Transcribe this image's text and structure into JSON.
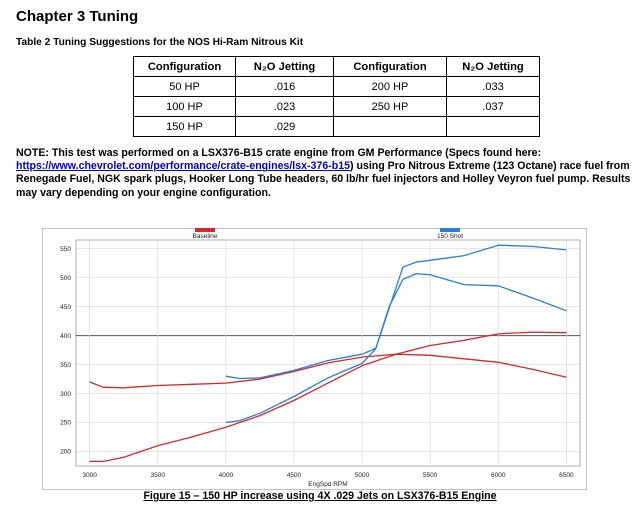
{
  "heading": "Chapter 3 Tuning",
  "table_caption": "Table 2 Tuning Suggestions for the NOS Hi-Ram Nitrous Kit",
  "table": {
    "headers": [
      "Configuration",
      "N₂O Jetting",
      "Configuration",
      "N₂O Jetting"
    ],
    "rows": [
      [
        "50 HP",
        ".016",
        "200 HP",
        ".033"
      ],
      [
        "100 HP",
        ".023",
        "250 HP",
        ".037"
      ],
      [
        "150 HP",
        ".029",
        "",
        ""
      ]
    ]
  },
  "note": {
    "before": "NOTE: This test was performed on a LSX376-B15 crate engine from GM Performance (Specs found here: ",
    "link": "https://www.chevrolet.com/performance/crate-engines/lsx-376-b15",
    "after": ") using Pro Nitrous Extreme (123 Octane) race fuel from Renegade Fuel, NGK spark plugs, Hooker Long Tube headers, 60 lb/hr fuel injectors and Holley Veyron fuel pump.  Results may vary depending on your engine configuration."
  },
  "figure_caption": "Figure 15 – 150 HP increase using 4X .029 Jets on LSX376-B15 Engine",
  "chart_data": {
    "type": "line",
    "xlabel": "EngSpd RPM",
    "ylabel": "",
    "xlim": [
      2900,
      6600
    ],
    "ylim": [
      175,
      565
    ],
    "x_ticks": [
      3000,
      3500,
      4000,
      4500,
      5000,
      5500,
      6000,
      6500
    ],
    "y_ticks": [
      200,
      250,
      300,
      350,
      400,
      450,
      500,
      550
    ],
    "grid": true,
    "legend_placement": "top",
    "series": [
      {
        "name": "Baseline",
        "color": "#d62828",
        "part": "torque",
        "x": [
          3000,
          3100,
          3250,
          3500,
          3750,
          4000,
          4250,
          4500,
          4750,
          5000,
          5250,
          5500,
          5750,
          6000,
          6250,
          6500
        ],
        "y": [
          320,
          311,
          310,
          314,
          316,
          318,
          325,
          338,
          353,
          363,
          368,
          366,
          360,
          354,
          342,
          328
        ]
      },
      {
        "name": "Baseline",
        "color": "#d62828",
        "part": "hp",
        "x": [
          3000,
          3100,
          3250,
          3500,
          3750,
          4000,
          4250,
          4500,
          4750,
          5000,
          5250,
          5500,
          5750,
          6000,
          6250,
          6500
        ],
        "y": [
          183,
          183,
          190,
          210,
          225,
          242,
          262,
          288,
          318,
          348,
          368,
          383,
          392,
          403,
          406,
          405
        ]
      },
      {
        "name": "150 Shot",
        "color": "#2a7fd4",
        "part": "torque",
        "x": [
          4000,
          4100,
          4250,
          4500,
          4750,
          5000,
          5100,
          5200,
          5300,
          5400,
          5500,
          5750,
          6000,
          6250,
          6500
        ],
        "y": [
          330,
          326,
          327,
          340,
          357,
          368,
          378,
          450,
          497,
          507,
          505,
          488,
          486,
          465,
          443
        ]
      },
      {
        "name": "150 Shot",
        "color": "#2a7fd4",
        "part": "hp",
        "x": [
          4000,
          4100,
          4250,
          4500,
          4750,
          5000,
          5100,
          5200,
          5300,
          5400,
          5500,
          5750,
          6000,
          6250,
          6500
        ],
        "y": [
          250,
          253,
          266,
          295,
          327,
          352,
          377,
          448,
          518,
          527,
          530,
          538,
          556,
          554,
          548
        ]
      }
    ]
  }
}
